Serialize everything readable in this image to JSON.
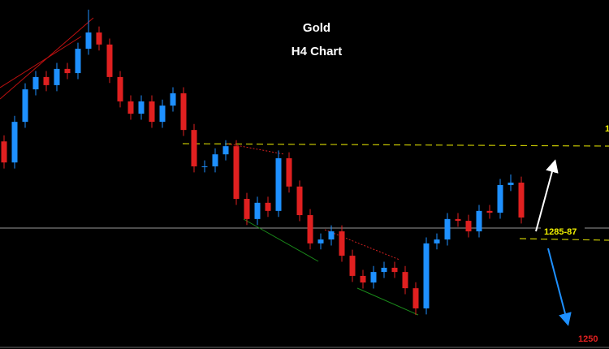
{
  "chart_data": {
    "type": "candlestick",
    "title": "Gold",
    "subtitle": "H4 Chart",
    "ylim": [
      1247,
      1363
    ],
    "up_color": "#1e90ff",
    "down_color": "#e02020",
    "open": [
      1316.0,
      1309.0,
      1322.5,
      1333.3,
      1337.4,
      1334.7,
      1340.1,
      1338.7,
      1346.8,
      1352.2,
      1348.2,
      1337.4,
      1329.3,
      1325.2,
      1329.3,
      1322.5,
      1327.9,
      1332.0,
      1319.8,
      1307.7,
      1307.7,
      1311.7,
      1314.4,
      1296.9,
      1290.2,
      1295.6,
      1292.9,
      1310.4,
      1301.0,
      1291.5,
      1282.1,
      1283.4,
      1286.1,
      1278.0,
      1271.3,
      1269.1,
      1272.6,
      1274.0,
      1272.6,
      1267.2,
      1260.5,
      1282.1,
      1283.4,
      1290.2,
      1289.6,
      1286.1,
      1292.9,
      1292.3,
      1301.5,
      1302.3
    ],
    "high": [
      1318.0,
      1324.5,
      1335.3,
      1339.4,
      1339.4,
      1342.1,
      1342.1,
      1348.8,
      1359.8,
      1354.2,
      1350.2,
      1339.4,
      1331.3,
      1331.3,
      1331.3,
      1329.9,
      1334.0,
      1334.0,
      1321.8,
      1309.7,
      1313.7,
      1316.4,
      1316.4,
      1298.9,
      1297.6,
      1297.6,
      1313.0,
      1312.4,
      1303.0,
      1293.5,
      1285.4,
      1288.1,
      1288.1,
      1280.0,
      1273.3,
      1274.6,
      1276.0,
      1276.0,
      1274.6,
      1269.2,
      1284.1,
      1285.4,
      1292.2,
      1292.2,
      1291.6,
      1294.9,
      1294.9,
      1303.5,
      1305.0,
      1304.3
    ],
    "low": [
      1307.0,
      1307.0,
      1320.5,
      1331.3,
      1332.7,
      1332.7,
      1336.7,
      1336.7,
      1344.8,
      1346.2,
      1335.4,
      1327.3,
      1323.2,
      1323.2,
      1320.5,
      1320.5,
      1325.9,
      1317.8,
      1305.7,
      1305.7,
      1305.7,
      1309.7,
      1294.9,
      1288.2,
      1288.2,
      1290.9,
      1290.9,
      1299.0,
      1289.5,
      1280.1,
      1280.1,
      1281.4,
      1276.0,
      1269.3,
      1267.1,
      1267.1,
      1270.6,
      1270.6,
      1265.2,
      1258.3,
      1258.5,
      1280.1,
      1281.4,
      1287.6,
      1284.1,
      1284.1,
      1290.3,
      1290.3,
      1299.5,
      1288.7
    ],
    "close": [
      1309.0,
      1322.5,
      1333.3,
      1337.4,
      1334.7,
      1340.1,
      1338.7,
      1346.8,
      1352.2,
      1348.2,
      1337.4,
      1329.3,
      1325.2,
      1329.3,
      1322.5,
      1327.9,
      1332.0,
      1319.8,
      1307.7,
      1307.7,
      1311.7,
      1314.4,
      1296.9,
      1290.2,
      1295.6,
      1292.9,
      1310.4,
      1301.0,
      1291.5,
      1282.1,
      1283.4,
      1286.1,
      1278.0,
      1271.3,
      1269.1,
      1272.6,
      1274.0,
      1272.6,
      1267.2,
      1260.5,
      1282.1,
      1283.4,
      1290.2,
      1289.6,
      1286.1,
      1292.9,
      1292.3,
      1301.5,
      1302.3,
      1290.7
    ],
    "annotations": [
      "1285-87",
      "1250",
      "1"
    ]
  }
}
